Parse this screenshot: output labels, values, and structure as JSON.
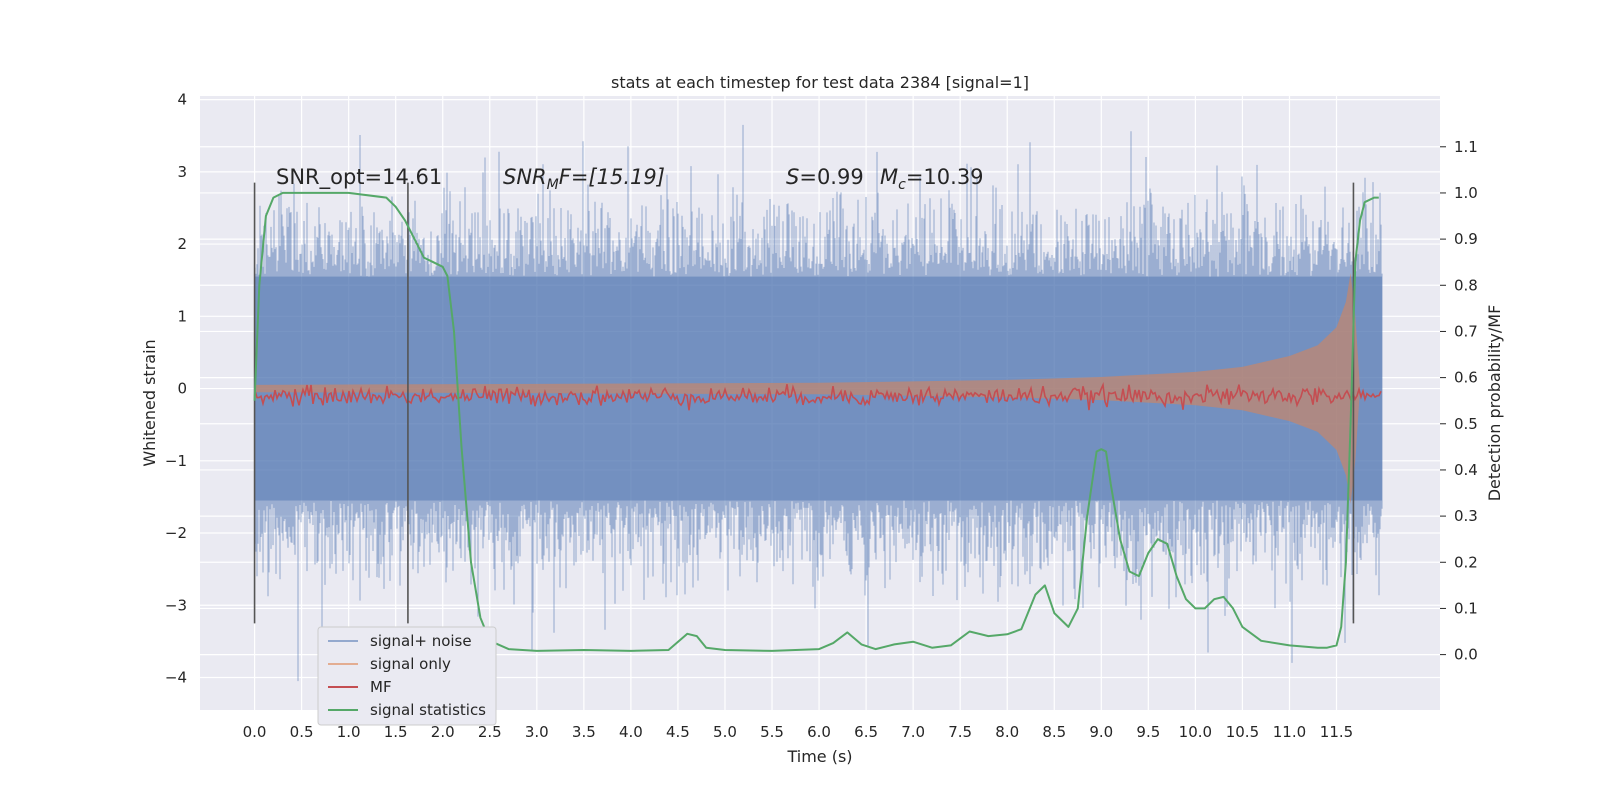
{
  "chart_data": {
    "type": "line",
    "title": "stats at each timestep for test data 2384 [signal=1]",
    "xlabel": "Time (s)",
    "ylabel": "Whitened strain",
    "ylabel_right": "Detection probability/MF",
    "xlim": [
      -0.58,
      12.6
    ],
    "ylim": [
      -4.45,
      4.05
    ],
    "ylim_right": [
      -0.12,
      1.21
    ],
    "x_ticks": [
      0.0,
      0.5,
      1.0,
      1.5,
      2.0,
      2.5,
      3.0,
      3.5,
      4.0,
      4.5,
      5.0,
      5.5,
      6.0,
      6.5,
      7.0,
      7.5,
      8.0,
      8.5,
      9.0,
      9.5,
      10.0,
      10.5,
      11.0,
      11.5
    ],
    "x_tick_labels": [
      "0.0",
      "0.5",
      "1.0",
      "1.5",
      "2.0",
      "2.5",
      "3.0",
      "3.5",
      "4.0",
      "4.5",
      "5.0",
      "5.5",
      "6.0",
      "6.5",
      "7.0",
      "7.5",
      "8.0",
      "8.5",
      "9.0",
      "9.5",
      "10.0",
      "10.5",
      "11.0",
      "11.5"
    ],
    "y_ticks": [
      -4,
      -3,
      -2,
      -1,
      0,
      1,
      2,
      3,
      4
    ],
    "y_tick_labels": [
      "−4",
      "−3",
      "−2",
      "−1",
      "0",
      "1",
      "2",
      "3",
      "4"
    ],
    "y_ticks_right": [
      0.0,
      0.1,
      0.2,
      0.3,
      0.4,
      0.5,
      0.6,
      0.7,
      0.8,
      0.9,
      1.0,
      1.1
    ],
    "y_tick_labels_right": [
      "0.0",
      "0.1",
      "0.2",
      "0.3",
      "0.4",
      "0.5",
      "0.6",
      "0.7",
      "0.8",
      "0.9",
      "1.0",
      "1.1"
    ],
    "grid": true,
    "legend_position": "lower-left",
    "annotations": {
      "snr_opt": "SNR_opt=14.61",
      "snr_mf_prefix": "SNR",
      "snr_mf_sub": "M",
      "snr_mf_suffix": "F=[15.19]",
      "s_label": "S",
      "s_value": "=0.99",
      "mc_label": "M",
      "mc_sub": "c",
      "mc_value": "=10.39"
    },
    "vertical_markers": [
      0.0,
      1.63,
      11.68
    ],
    "series": [
      {
        "name": "signal+ noise",
        "color": "#4c72b0",
        "kind": "noise-band",
        "duration": 11.98,
        "typical_amplitude": 1.55,
        "peak_max": 3.65,
        "peak_min": -4.05
      },
      {
        "name": "signal only",
        "color": "#dd8452",
        "kind": "chirp-envelope",
        "envelope_x": [
          0.0,
          6.0,
          8.0,
          9.0,
          10.0,
          10.5,
          11.0,
          11.3,
          11.5,
          11.6,
          11.65,
          11.7,
          11.75
        ],
        "envelope_y": [
          0.05,
          0.08,
          0.12,
          0.16,
          0.23,
          0.3,
          0.45,
          0.6,
          0.85,
          1.2,
          1.6,
          1.0,
          0.0
        ]
      },
      {
        "name": "MF",
        "color": "#c44e52",
        "kind": "noisy-line",
        "baseline": 0.56,
        "jitter": 0.01,
        "duration": 11.98
      },
      {
        "name": "signal statistics",
        "color": "#55a868",
        "kind": "line",
        "x": [
          0.0,
          0.05,
          0.12,
          0.2,
          0.3,
          0.5,
          1.0,
          1.4,
          1.5,
          1.6,
          1.7,
          1.8,
          1.9,
          2.0,
          2.05,
          2.12,
          2.2,
          2.3,
          2.4,
          2.5,
          2.7,
          3.0,
          3.5,
          4.0,
          4.4,
          4.6,
          4.7,
          4.8,
          5.0,
          5.5,
          6.0,
          6.15,
          6.3,
          6.45,
          6.6,
          6.8,
          7.0,
          7.2,
          7.4,
          7.6,
          7.8,
          8.0,
          8.15,
          8.3,
          8.4,
          8.5,
          8.65,
          8.75,
          8.85,
          8.95,
          9.0,
          9.05,
          9.1,
          9.2,
          9.3,
          9.4,
          9.5,
          9.6,
          9.7,
          9.8,
          9.9,
          10.0,
          10.1,
          10.2,
          10.3,
          10.4,
          10.5,
          10.7,
          11.0,
          11.3,
          11.4,
          11.5,
          11.55,
          11.6,
          11.65,
          11.7,
          11.75,
          11.8,
          11.9,
          11.95
        ],
        "y": [
          0.55,
          0.8,
          0.95,
          0.99,
          1.0,
          1.0,
          1.0,
          0.99,
          0.97,
          0.94,
          0.9,
          0.86,
          0.85,
          0.84,
          0.82,
          0.7,
          0.45,
          0.2,
          0.08,
          0.03,
          0.012,
          0.008,
          0.01,
          0.008,
          0.01,
          0.045,
          0.04,
          0.015,
          0.01,
          0.008,
          0.012,
          0.025,
          0.048,
          0.022,
          0.012,
          0.022,
          0.028,
          0.015,
          0.02,
          0.05,
          0.04,
          0.044,
          0.055,
          0.13,
          0.15,
          0.09,
          0.06,
          0.1,
          0.3,
          0.44,
          0.445,
          0.44,
          0.37,
          0.25,
          0.18,
          0.17,
          0.22,
          0.25,
          0.24,
          0.17,
          0.12,
          0.1,
          0.1,
          0.12,
          0.125,
          0.1,
          0.06,
          0.03,
          0.02,
          0.015,
          0.015,
          0.02,
          0.06,
          0.2,
          0.5,
          0.85,
          0.94,
          0.98,
          0.99,
          0.99
        ]
      }
    ]
  }
}
